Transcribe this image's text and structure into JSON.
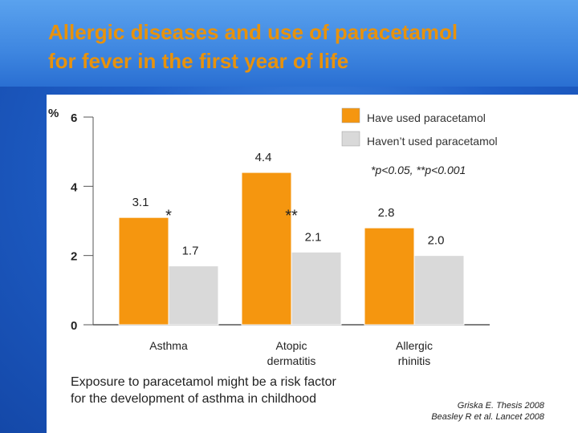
{
  "slide": {
    "title_lines": [
      "Allergic diseases and use of paracetamol",
      "for fever in the first year of life"
    ],
    "conclusion_lines": [
      "Exposure to paracetamol might be a risk factor",
      "for the development of asthma in childhood"
    ],
    "citation_lines": [
      "Griska E. Thesis 2008",
      "Beasley R et al. Lancet 2008"
    ],
    "significance_note": "*p<0.05,  **p<0.001",
    "y_unit": "%"
  },
  "colors": {
    "used": "#f5960f",
    "not_used": "#d9d9d9",
    "title": "#e8920c"
  },
  "chart_data": {
    "type": "bar",
    "categories": [
      [
        "Asthma"
      ],
      [
        "Atopic",
        "dermatitis"
      ],
      [
        "Allergic",
        "rhinitis"
      ]
    ],
    "series": [
      {
        "name": "Have used paracetamol",
        "values": [
          3.1,
          4.4,
          2.8
        ],
        "labels": [
          "3.1",
          "4.4",
          "2.8"
        ]
      },
      {
        "name": "Haven’t used paracetamol",
        "values": [
          1.7,
          2.1,
          2.0
        ],
        "labels": [
          "1.7",
          "2.1",
          "2.0"
        ]
      }
    ],
    "significance": [
      "*",
      "**",
      ""
    ],
    "yticks": [
      0,
      2,
      4,
      6
    ],
    "ylim": [
      0,
      6
    ],
    "legend_position": "top-right",
    "grid": false
  }
}
